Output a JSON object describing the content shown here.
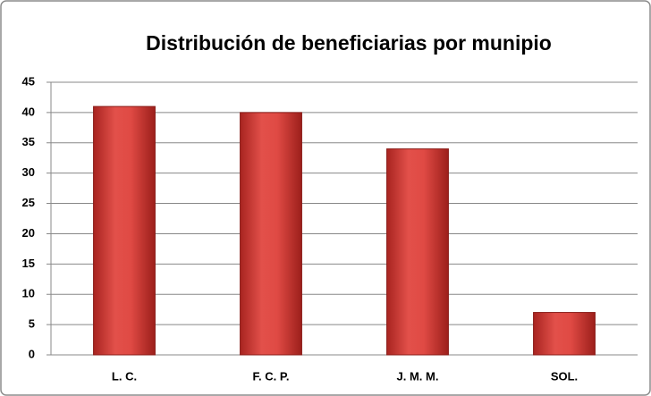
{
  "chart_data": {
    "type": "bar",
    "title": "Distribución de beneficiarias por munipio",
    "categories": [
      "L. C.",
      "F. C. P.",
      "J. M. M.",
      "SOL."
    ],
    "values": [
      41,
      40,
      34,
      7
    ],
    "color": "#d9413c",
    "ylim": [
      0,
      45
    ],
    "yticks": [
      0,
      5,
      10,
      15,
      20,
      25,
      30,
      35,
      40,
      45
    ],
    "grid": true
  }
}
